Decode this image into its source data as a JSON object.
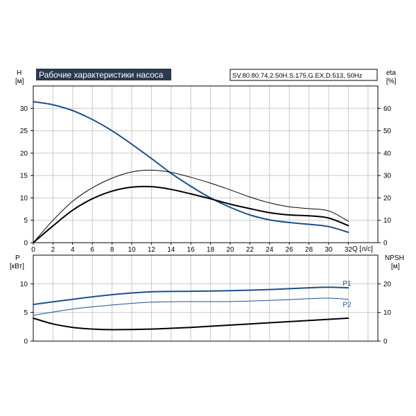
{
  "title": "Рабочие характеристики насоса",
  "model": "SV.80.80.74.2.50H.S.175.G.EX.D.513, 50Hz",
  "colors": {
    "blue": "#1c4f8a",
    "black": "#000000",
    "title_bg": "#2b3a4e",
    "grid": "#c8c8c8"
  },
  "chart_data": [
    {
      "type": "line",
      "name": "top",
      "y_left": {
        "label_line1": "H",
        "label_line2": "[м]",
        "ticks": [
          "0",
          "5",
          "10",
          "15",
          "20",
          "25",
          "30"
        ],
        "range": [
          0,
          35
        ]
      },
      "y_right": {
        "label_line1": "eta",
        "label_line2": "[%]",
        "ticks": [
          "0",
          "10",
          "20",
          "30",
          "40",
          "50",
          "60"
        ],
        "range": [
          0,
          70
        ]
      },
      "x": {
        "label": "Q [л/с]",
        "ticks": [
          "0",
          "2",
          "4",
          "6",
          "8",
          "10",
          "12",
          "14",
          "16",
          "18",
          "20",
          "22",
          "24",
          "26",
          "28",
          "30",
          "32"
        ],
        "range": [
          0,
          35
        ]
      },
      "grid": true,
      "series": [
        {
          "axis": "left",
          "color": "blue",
          "width": 2,
          "points": [
            [
              0,
              31.5
            ],
            [
              2,
              30.8
            ],
            [
              4,
              29.5
            ],
            [
              6,
              27.5
            ],
            [
              8,
              25
            ],
            [
              10,
              22
            ],
            [
              12,
              18.8
            ],
            [
              14,
              15.5
            ],
            [
              16,
              12.6
            ],
            [
              18,
              10
            ],
            [
              20,
              7.9
            ],
            [
              22,
              6.2
            ],
            [
              24,
              5.1
            ],
            [
              26,
              4.5
            ],
            [
              28,
              4.1
            ],
            [
              30,
              3.6
            ],
            [
              32,
              2.3
            ]
          ]
        },
        {
          "axis": "right",
          "color": "black",
          "width": 1,
          "points": [
            [
              0,
              0
            ],
            [
              2,
              10
            ],
            [
              4,
              18.5
            ],
            [
              6,
              24.5
            ],
            [
              8,
              28.8
            ],
            [
              10,
              31.6
            ],
            [
              12,
              32.4
            ],
            [
              14,
              31.4
            ],
            [
              16,
              29.2
            ],
            [
              18,
              26.6
            ],
            [
              20,
              23.6
            ],
            [
              22,
              20.4
            ],
            [
              24,
              17.8
            ],
            [
              26,
              16
            ],
            [
              28,
              15.2
            ],
            [
              30,
              14.2
            ],
            [
              32,
              9.6
            ]
          ]
        },
        {
          "axis": "right",
          "color": "black",
          "width": 2,
          "points": [
            [
              0,
              0
            ],
            [
              2,
              7.5
            ],
            [
              4,
              14.5
            ],
            [
              6,
              19.6
            ],
            [
              8,
              23
            ],
            [
              10,
              24.8
            ],
            [
              12,
              25
            ],
            [
              14,
              23.8
            ],
            [
              16,
              21.8
            ],
            [
              18,
              19.6
            ],
            [
              20,
              17.2
            ],
            [
              22,
              15.2
            ],
            [
              24,
              13.4
            ],
            [
              26,
              12.4
            ],
            [
              28,
              12
            ],
            [
              30,
              11
            ],
            [
              32,
              7.6
            ]
          ]
        }
      ]
    },
    {
      "type": "line",
      "name": "bottom",
      "y_left": {
        "label_line1": "P",
        "label_line2": "[кВт]",
        "ticks": [
          "0",
          "5",
          "10"
        ],
        "range": [
          0,
          15
        ]
      },
      "y_right": {
        "label_line1": "NPSH",
        "label_line2": "[м]",
        "ticks": [
          "0",
          "10",
          "20"
        ],
        "range": [
          0,
          30
        ]
      },
      "x": {
        "ticks": [],
        "range": [
          0,
          35
        ]
      },
      "grid": true,
      "series": [
        {
          "axis": "left",
          "color": "blue",
          "width": 2,
          "label": "P1",
          "points": [
            [
              0,
              6.4
            ],
            [
              4,
              7.3
            ],
            [
              8,
              8.1
            ],
            [
              12,
              8.6
            ],
            [
              16,
              8.7
            ],
            [
              20,
              8.8
            ],
            [
              24,
              9
            ],
            [
              28,
              9.3
            ],
            [
              30,
              9.4
            ],
            [
              32,
              9.3
            ]
          ]
        },
        {
          "axis": "left",
          "color": "blue",
          "width": 1,
          "label": "P2",
          "points": [
            [
              0,
              4.5
            ],
            [
              4,
              5.6
            ],
            [
              8,
              6.3
            ],
            [
              12,
              6.8
            ],
            [
              16,
              6.9
            ],
            [
              20,
              6.9
            ],
            [
              24,
              7.1
            ],
            [
              28,
              7.4
            ],
            [
              30,
              7.5
            ],
            [
              32,
              7.3
            ]
          ]
        },
        {
          "axis": "right",
          "color": "black",
          "width": 2,
          "points": [
            [
              0,
              8
            ],
            [
              2,
              6
            ],
            [
              4,
              4.8
            ],
            [
              6,
              4.2
            ],
            [
              8,
              4
            ],
            [
              12,
              4.2
            ],
            [
              16,
              4.8
            ],
            [
              20,
              5.6
            ],
            [
              24,
              6.4
            ],
            [
              28,
              7.2
            ],
            [
              32,
              8
            ]
          ]
        }
      ]
    }
  ]
}
